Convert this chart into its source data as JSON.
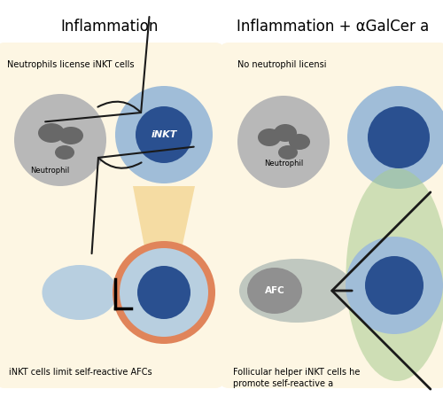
{
  "background_color": "#ffffff",
  "panel_bg": "#fdf6e3",
  "title_left": "Inflammation",
  "title_right": "Inflammation + αGalCer a",
  "subtitle_left_top": "Neutrophils license ​iNKT cells",
  "subtitle_right_top": "No neutrophil licensi",
  "subtitle_left_bottom": "iNKT cells limit self-reactive AFCs",
  "subtitle_right_bottom": "Follicular helper ​iNKT cells he\npromote self-reactive a",
  "neutrophil_color": "#b8b8b8",
  "neutrophil_nucleus_color": "#686868",
  "inkt_outer_color": "#a0bdd8",
  "inkt_inner_color": "#2a5090",
  "afc_outer_color": "#b8cfe0",
  "afc_inner_color": "#2a5090",
  "afc_ring_color": "#e0845a",
  "signal_cone_color": "#f0c870",
  "signal_cone_alpha": 0.55,
  "green_region_color": "#a8cc90",
  "green_region_alpha": 0.55,
  "arrow_color": "#1a1a1a",
  "afc_gray_color": "#909090",
  "afc_body_color": "#c8d8c8"
}
